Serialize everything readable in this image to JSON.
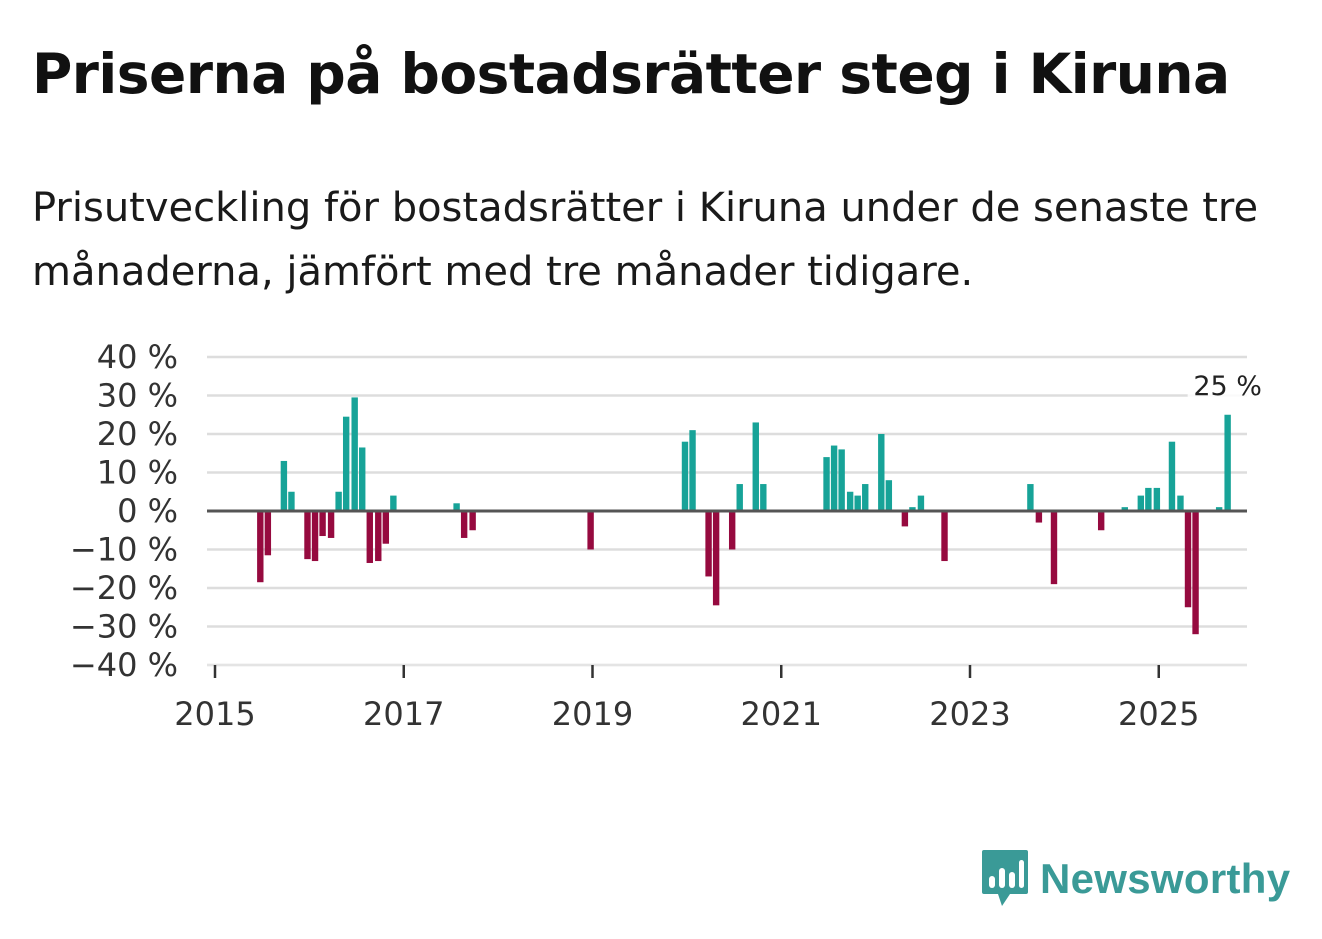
{
  "header": {
    "title": "Priserna på bostadsrätter steg i Kiruna",
    "subtitle": "Prisutveckling för bostadsrätter i Kiruna under de senaste tre månaderna, jämfört med tre månader tidigare."
  },
  "branding": {
    "name": "Newsworthy",
    "logo_icon": "bar-chart-speech-bubble-icon",
    "color": "#3a9a97"
  },
  "colors": {
    "positive": "#17a398",
    "negative": "#960a3f",
    "grid": "#dddddd",
    "zero_line": "#555555"
  },
  "chart_data": {
    "type": "bar",
    "title": "Priserna på bostadsrätter steg i Kiruna",
    "xlabel": "",
    "ylabel": "",
    "ylim": [
      -40,
      40
    ],
    "xlim": [
      2015.0,
      2026.3
    ],
    "yticks": [
      40,
      30,
      20,
      10,
      0,
      -10,
      -20,
      -30,
      -40
    ],
    "ytick_labels": [
      "40 %",
      "30 %",
      "20 %",
      "10 %",
      "0 %",
      "−10 %",
      "−20 %",
      "−30 %",
      "−40 %"
    ],
    "xticks": [
      2015,
      2017,
      2019,
      2021,
      2023,
      2025
    ],
    "xtick_labels": [
      "2015",
      "2017",
      "2019",
      "2021",
      "2023",
      "2025"
    ],
    "grid": true,
    "unit": "%",
    "series": [
      {
        "name": "Prisutveckling",
        "points": [
          {
            "x": 2015.48,
            "y": -18.5
          },
          {
            "x": 2015.56,
            "y": -11.5
          },
          {
            "x": 2015.73,
            "y": 13
          },
          {
            "x": 2015.81,
            "y": 5
          },
          {
            "x": 2015.98,
            "y": -12.5
          },
          {
            "x": 2016.06,
            "y": -13
          },
          {
            "x": 2016.14,
            "y": -6.5
          },
          {
            "x": 2016.23,
            "y": -7
          },
          {
            "x": 2016.31,
            "y": 5
          },
          {
            "x": 2016.39,
            "y": 24.5
          },
          {
            "x": 2016.48,
            "y": 29.5
          },
          {
            "x": 2016.56,
            "y": 16.5
          },
          {
            "x": 2016.64,
            "y": -13.5
          },
          {
            "x": 2016.73,
            "y": -13
          },
          {
            "x": 2016.81,
            "y": -8.5
          },
          {
            "x": 2016.89,
            "y": 4
          },
          {
            "x": 2017.56,
            "y": 2
          },
          {
            "x": 2017.64,
            "y": -7
          },
          {
            "x": 2017.73,
            "y": -5
          },
          {
            "x": 2018.98,
            "y": -10
          },
          {
            "x": 2019.98,
            "y": 18
          },
          {
            "x": 2020.06,
            "y": 21
          },
          {
            "x": 2020.23,
            "y": -17
          },
          {
            "x": 2020.31,
            "y": -24.5
          },
          {
            "x": 2020.48,
            "y": -10
          },
          {
            "x": 2020.56,
            "y": 7
          },
          {
            "x": 2020.73,
            "y": 23
          },
          {
            "x": 2020.81,
            "y": 7
          },
          {
            "x": 2021.48,
            "y": 14
          },
          {
            "x": 2021.56,
            "y": 17
          },
          {
            "x": 2021.64,
            "y": 16
          },
          {
            "x": 2021.73,
            "y": 5
          },
          {
            "x": 2021.81,
            "y": 4
          },
          {
            "x": 2021.89,
            "y": 7
          },
          {
            "x": 2022.06,
            "y": 20
          },
          {
            "x": 2022.14,
            "y": 8
          },
          {
            "x": 2022.31,
            "y": -4
          },
          {
            "x": 2022.39,
            "y": 1
          },
          {
            "x": 2022.48,
            "y": 4
          },
          {
            "x": 2022.73,
            "y": -13
          },
          {
            "x": 2023.64,
            "y": 7
          },
          {
            "x": 2023.73,
            "y": -3
          },
          {
            "x": 2023.89,
            "y": -19
          },
          {
            "x": 2024.39,
            "y": -5
          },
          {
            "x": 2024.64,
            "y": 1
          },
          {
            "x": 2024.81,
            "y": 4
          },
          {
            "x": 2024.89,
            "y": 6
          },
          {
            "x": 2024.98,
            "y": 6
          },
          {
            "x": 2025.14,
            "y": 18
          },
          {
            "x": 2025.23,
            "y": 4
          },
          {
            "x": 2025.31,
            "y": -25
          },
          {
            "x": 2025.39,
            "y": -32
          },
          {
            "x": 2025.64,
            "y": 1
          },
          {
            "x": 2025.73,
            "y": 25
          }
        ]
      }
    ],
    "annotations": [
      {
        "x": 2025.73,
        "y": 25,
        "text": "25 %"
      }
    ]
  }
}
